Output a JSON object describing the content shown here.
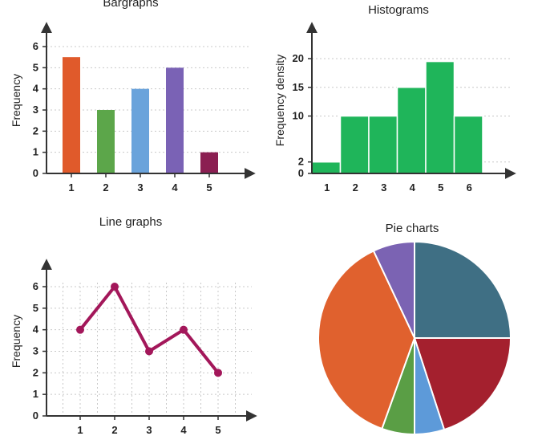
{
  "chart_data": [
    {
      "type": "bar",
      "title": "Bargraphs",
      "ylabel": "Frequency",
      "xlabel": "",
      "categories": [
        "1",
        "2",
        "3",
        "4",
        "5"
      ],
      "values": [
        5.5,
        3,
        4,
        5,
        1
      ],
      "colors": [
        "#e05a2b",
        "#5ca64a",
        "#6aa3db",
        "#7a62b5",
        "#8b1f52"
      ],
      "yticks": [
        "0",
        "1",
        "2",
        "3",
        "4",
        "5",
        "6"
      ],
      "ylim": [
        0,
        6
      ],
      "grid": true
    },
    {
      "type": "bar",
      "subtype": "histogram",
      "title": "Histograms",
      "ylabel": "Frequency density",
      "xlabel": "",
      "xticks": [
        "1",
        "2",
        "3",
        "4",
        "5",
        "6"
      ],
      "bins": [
        [
          0.5,
          1.5
        ],
        [
          1.5,
          2.5
        ],
        [
          2.5,
          3.5
        ],
        [
          3.5,
          4.5
        ],
        [
          4.5,
          5.5
        ],
        [
          5.5,
          6.5
        ]
      ],
      "values": [
        2,
        10,
        10,
        15,
        19.5,
        10
      ],
      "color": "#1fb55a",
      "yticks": [
        "0",
        "2",
        "10",
        "15",
        "20"
      ],
      "ytick_values": [
        0,
        2,
        10,
        15,
        20
      ],
      "ylim": [
        0,
        20
      ],
      "grid": true
    },
    {
      "type": "line",
      "title": "Line graphs",
      "ylabel": "Frequency",
      "xlabel": "",
      "categories": [
        "1",
        "2",
        "3",
        "4",
        "5"
      ],
      "values": [
        4,
        6,
        3,
        4,
        2
      ],
      "color": "#a3175a",
      "yticks": [
        "0",
        "1",
        "2",
        "3",
        "4",
        "5",
        "6"
      ],
      "ylim": [
        0,
        6
      ],
      "grid": true
    },
    {
      "type": "pie",
      "title": "Pie charts",
      "slices": [
        {
          "value": 25,
          "color": "#3f6f84"
        },
        {
          "value": 20,
          "color": "#a4202e"
        },
        {
          "value": 5,
          "color": "#5d9ad9"
        },
        {
          "value": 5.5,
          "color": "#5a9e45"
        },
        {
          "value": 37.5,
          "color": "#e0612e"
        },
        {
          "value": 7,
          "color": "#7b63b3"
        }
      ]
    }
  ]
}
